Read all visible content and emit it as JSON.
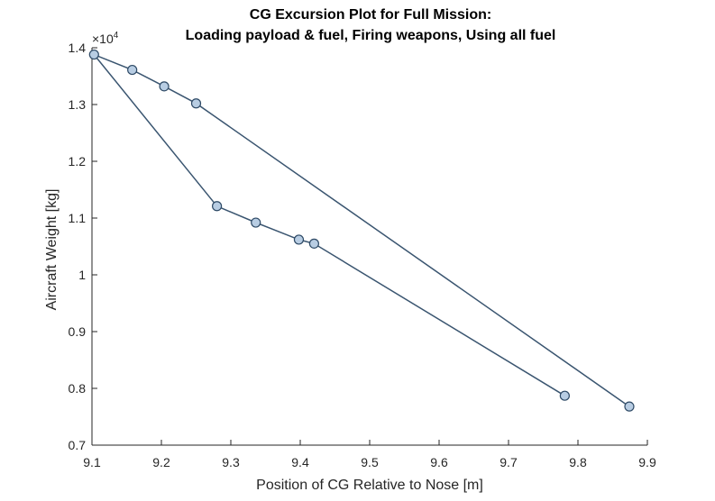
{
  "chart_data": {
    "type": "line",
    "title": [
      "CG Excursion Plot for Full Mission:",
      "Loading payload & fuel, Firing weapons, Using all fuel"
    ],
    "xlabel": "Position of CG Relative to Nose [m]",
    "ylabel": "Aircraft Weight [kg]",
    "xlim": [
      9.1,
      9.9
    ],
    "ylim": [
      0.7,
      1.4
    ],
    "xticks": [
      "9.1",
      "9.2",
      "9.3",
      "9.4",
      "9.5",
      "9.6",
      "9.7",
      "9.8",
      "9.9"
    ],
    "yticks": [
      "0.7",
      "0.8",
      "0.9",
      "1",
      "1.1",
      "1.2",
      "1.3",
      "1.4"
    ],
    "xtick_values": [
      9.1,
      9.2,
      9.3,
      9.4,
      9.5,
      9.6,
      9.7,
      9.8,
      9.9
    ],
    "ytick_values": [
      0.7,
      0.8,
      0.9,
      1.0,
      1.1,
      1.2,
      1.3,
      1.4
    ],
    "y_multiplier": {
      "prefix": "×10",
      "exponent": "4"
    },
    "grid": false,
    "series": [
      {
        "x": [
          9.781,
          9.42,
          9.398,
          9.336,
          9.28,
          9.103,
          9.158,
          9.204,
          9.25,
          9.874
        ],
        "y": [
          0.787,
          1.055,
          1.062,
          1.092,
          1.121,
          1.388,
          1.361,
          1.332,
          1.302,
          0.768
        ]
      }
    ],
    "colors": {
      "line": "#3a5570",
      "marker_fill": "#b8cde3",
      "marker_edge": "#2e4a66",
      "axis": "#262626"
    }
  }
}
